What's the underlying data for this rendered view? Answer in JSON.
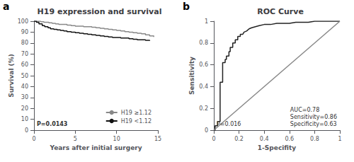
{
  "chart_data": [
    {
      "type": "step",
      "panel_label": "a",
      "title": "H19 expression and survival",
      "xlabel": "Years after initial surgery",
      "ylabel": "Survival (%)",
      "xlim": [
        0,
        15
      ],
      "ylim": [
        0,
        100
      ],
      "xticks": [
        0,
        5,
        10,
        15
      ],
      "yticks": [
        0,
        10,
        20,
        30,
        40,
        50,
        60,
        70,
        80,
        90,
        100
      ],
      "grid": false,
      "legend": "lower right",
      "annotations": [
        "P=0.0143"
      ],
      "series": [
        {
          "name": "H19 ≥1.12",
          "color": "#888888",
          "x": [
            0,
            0.4,
            0.8,
            1.2,
            1.5,
            1.8,
            2.2,
            2.6,
            3.0,
            3.5,
            4.0,
            4.5,
            5.0,
            5.5,
            6.0,
            6.5,
            7.0,
            7.5,
            8.0,
            8.5,
            9.0,
            9.5,
            10.0,
            10.5,
            11.0,
            11.5,
            12.0,
            12.5,
            13.0,
            13.5,
            14.0,
            14.5
          ],
          "values": [
            100,
            100,
            99.5,
            99,
            99,
            98.5,
            98,
            97.5,
            97,
            97,
            96.5,
            96,
            95.5,
            95.5,
            95,
            95,
            94.5,
            94,
            93.5,
            93,
            92.5,
            92,
            91.5,
            91,
            90.5,
            90,
            89.5,
            89,
            88.5,
            87.5,
            86.5,
            85.5
          ]
        },
        {
          "name": "H19 <1.12",
          "color": "#111111",
          "x": [
            0,
            0.3,
            0.6,
            1.0,
            1.3,
            1.7,
            2.0,
            2.4,
            2.8,
            3.2,
            3.6,
            4.0,
            4.5,
            5.0,
            5.5,
            6.0,
            6.5,
            7.0,
            7.5,
            8.0,
            8.5,
            9.0,
            9.5,
            10.0,
            10.5,
            11.0,
            11.5,
            12.0,
            12.5,
            13.0,
            13.5,
            14.0
          ],
          "values": [
            100,
            99,
            97.5,
            96,
            95,
            94,
            93,
            92.5,
            92,
            91.5,
            91,
            90.5,
            90,
            89.5,
            89,
            88.5,
            88,
            87.5,
            87,
            86.5,
            86,
            85.5,
            85,
            85,
            84.5,
            84.5,
            84,
            83.5,
            83,
            83,
            82.5,
            82
          ]
        }
      ]
    },
    {
      "type": "line",
      "panel_label": "b",
      "title": "ROC Curve",
      "xlabel": "1-Specifity",
      "ylabel": "Sensitivity",
      "xlim": [
        0,
        1.0
      ],
      "ylim": [
        0,
        1.0
      ],
      "xticks": [
        0,
        0.2,
        0.4,
        0.6,
        0.8,
        1
      ],
      "yticks": [
        0,
        0.2,
        0.4,
        0.6,
        0.8,
        1
      ],
      "grid": false,
      "annotations": [
        "P=0.016",
        "AUC=0.78\nSensitivity=0.86\nSpecificity=0.63"
      ],
      "series": [
        {
          "color": "#222222",
          "x": [
            0.0,
            0.01,
            0.01,
            0.03,
            0.03,
            0.05,
            0.05,
            0.07,
            0.07,
            0.09,
            0.09,
            0.1,
            0.1,
            0.12,
            0.12,
            0.13,
            0.13,
            0.15,
            0.15,
            0.17,
            0.17,
            0.19,
            0.19,
            0.21,
            0.21,
            0.23,
            0.24,
            0.26,
            0.28,
            0.3,
            0.33,
            0.36,
            0.4,
            0.45,
            0.5,
            0.55,
            0.6,
            0.65,
            0.7,
            0.75,
            0.8,
            0.9,
            1.0
          ],
          "values": [
            0.0,
            0.0,
            0.04,
            0.04,
            0.08,
            0.08,
            0.44,
            0.44,
            0.62,
            0.62,
            0.65,
            0.65,
            0.68,
            0.68,
            0.72,
            0.72,
            0.76,
            0.76,
            0.8,
            0.8,
            0.83,
            0.83,
            0.86,
            0.86,
            0.88,
            0.88,
            0.9,
            0.91,
            0.93,
            0.94,
            0.95,
            0.96,
            0.97,
            0.97,
            0.98,
            0.98,
            0.98,
            0.99,
            0.99,
            0.99,
            1.0,
            1.0,
            1.0
          ]
        },
        {
          "color": "#888888",
          "x": [
            0,
            1
          ],
          "values": [
            0,
            1
          ]
        }
      ]
    }
  ]
}
